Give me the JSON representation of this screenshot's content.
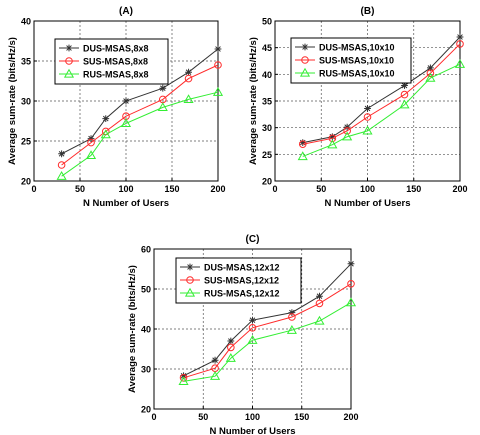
{
  "chart_data": [
    {
      "type": "line",
      "title": "(A)",
      "xlabel": "N Number of Users",
      "ylabel": "Average sum-rate (bits/Hz/s)",
      "xlim": [
        0,
        200
      ],
      "ylim": [
        20,
        40
      ],
      "xticks": [
        0,
        50,
        100,
        150,
        200
      ],
      "yticks": [
        20,
        25,
        30,
        35,
        40
      ],
      "grid": true,
      "legend_position": "top-left",
      "x": [
        30,
        62,
        78,
        100,
        140,
        168,
        200
      ],
      "series": [
        {
          "name": "DUS-MSAS,8x8",
          "marker": "star",
          "color": "#333333",
          "values": [
            23.4,
            25.3,
            27.8,
            30.0,
            31.6,
            33.6,
            36.5
          ]
        },
        {
          "name": "SUS-MSAS,8x8",
          "marker": "circle",
          "color": "#ff2a2a",
          "values": [
            22.0,
            24.8,
            26.2,
            28.1,
            30.2,
            32.8,
            34.5
          ]
        },
        {
          "name": "RUS-MSAS,8x8",
          "marker": "triangle",
          "color": "#33ee33",
          "values": [
            20.6,
            23.2,
            25.8,
            27.2,
            29.2,
            30.2,
            31.1
          ]
        }
      ]
    },
    {
      "type": "line",
      "title": "(B)",
      "xlabel": "N Number of Users",
      "ylabel": "Average sum-rate (bits/Hz/s)",
      "xlim": [
        0,
        200
      ],
      "ylim": [
        20,
        50
      ],
      "xticks": [
        0,
        50,
        100,
        150,
        200
      ],
      "yticks": [
        20,
        25,
        30,
        35,
        40,
        45,
        50
      ],
      "grid": true,
      "legend_position": "top-left",
      "x": [
        30,
        62,
        78,
        100,
        140,
        168,
        200
      ],
      "series": [
        {
          "name": "DUS-MSAS,10x10",
          "marker": "star",
          "color": "#333333",
          "values": [
            27.2,
            28.3,
            30.1,
            33.6,
            37.9,
            41.2,
            47.0
          ]
        },
        {
          "name": "SUS-MSAS,10x10",
          "marker": "circle",
          "color": "#ff2a2a",
          "values": [
            26.9,
            28.0,
            29.4,
            32.0,
            36.2,
            40.2,
            45.7
          ]
        },
        {
          "name": "RUS-MSAS,10x10",
          "marker": "triangle",
          "color": "#33ee33",
          "values": [
            24.6,
            26.8,
            28.3,
            29.4,
            34.3,
            39.3,
            41.9
          ]
        }
      ]
    },
    {
      "type": "line",
      "title": "(C)",
      "xlabel": "N Number of Users",
      "ylabel": "Average sum-rate (bits/Hz/s)",
      "xlim": [
        0,
        200
      ],
      "ylim": [
        20,
        60
      ],
      "xticks": [
        0,
        50,
        100,
        150,
        200
      ],
      "yticks": [
        20,
        30,
        40,
        50,
        60
      ],
      "grid": true,
      "legend_position": "top-left",
      "x": [
        30,
        62,
        78,
        100,
        140,
        168,
        200
      ],
      "series": [
        {
          "name": "DUS-MSAS,12x12",
          "marker": "star",
          "color": "#333333",
          "values": [
            28.3,
            32.2,
            37.0,
            42.2,
            44.1,
            48.2,
            56.3
          ]
        },
        {
          "name": "SUS-MSAS,12x12",
          "marker": "circle",
          "color": "#ff2a2a",
          "values": [
            27.8,
            30.2,
            35.4,
            40.3,
            43.0,
            46.4,
            51.3
          ]
        },
        {
          "name": "RUS-MSAS,12x12",
          "marker": "triangle",
          "color": "#33ee33",
          "values": [
            26.9,
            28.2,
            32.7,
            37.2,
            39.7,
            42.0,
            46.6
          ]
        }
      ]
    }
  ]
}
